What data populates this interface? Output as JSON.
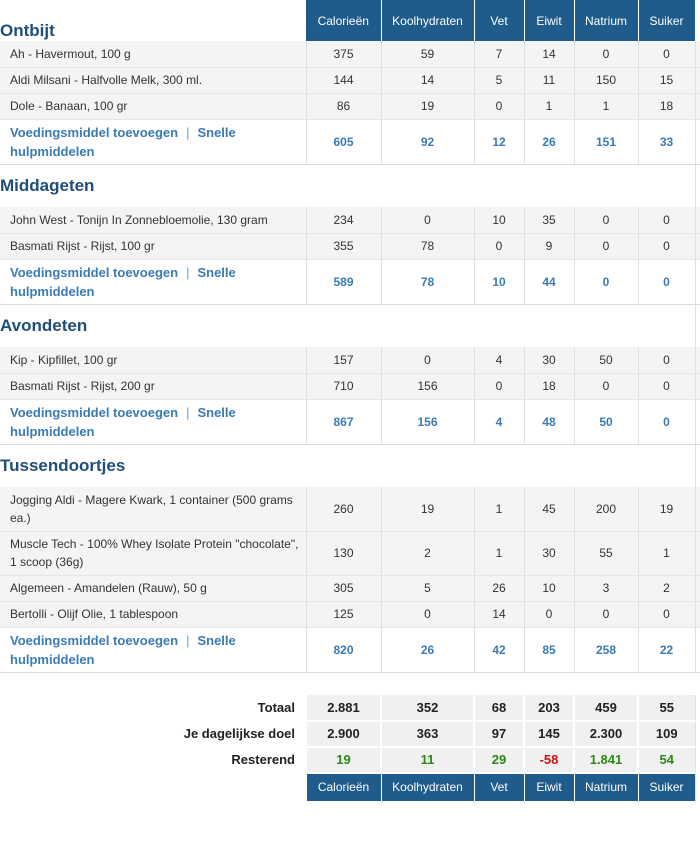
{
  "columns": [
    "Calorieën",
    "Koolhydraten",
    "Vet",
    "Eiwit",
    "Natrium",
    "Suiker"
  ],
  "add_food_label": "Voedingsmiddel toevoegen",
  "separator": "|",
  "quick_tools_label": "Snelle hulpmiddelen",
  "meals": [
    {
      "title": "Ontbijt",
      "items": [
        {
          "name": "Ah - Havermout, 100 g",
          "values": [
            "375",
            "59",
            "7",
            "14",
            "0",
            "0"
          ]
        },
        {
          "name": "Aldi Milsani - Halfvolle Melk, 300 ml.",
          "values": [
            "144",
            "14",
            "5",
            "11",
            "150",
            "15"
          ]
        },
        {
          "name": "Dole - Banaan, 100 gr",
          "values": [
            "86",
            "19",
            "0",
            "1",
            "1",
            "18"
          ]
        }
      ],
      "totals": [
        "605",
        "92",
        "12",
        "26",
        "151",
        "33"
      ]
    },
    {
      "title": "Middageten",
      "items": [
        {
          "name": "John West - Tonijn In Zonnebloemolie, 130 gram",
          "values": [
            "234",
            "0",
            "10",
            "35",
            "0",
            "0"
          ]
        },
        {
          "name": "Basmati Rijst - Rijst, 100 gr",
          "values": [
            "355",
            "78",
            "0",
            "9",
            "0",
            "0"
          ]
        }
      ],
      "totals": [
        "589",
        "78",
        "10",
        "44",
        "0",
        "0"
      ]
    },
    {
      "title": "Avondeten",
      "items": [
        {
          "name": "Kip - Kipfillet, 100 gr",
          "values": [
            "157",
            "0",
            "4",
            "30",
            "50",
            "0"
          ]
        },
        {
          "name": "Basmati Rijst - Rijst, 200 gr",
          "values": [
            "710",
            "156",
            "0",
            "18",
            "0",
            "0"
          ]
        }
      ],
      "totals": [
        "867",
        "156",
        "4",
        "48",
        "50",
        "0"
      ]
    },
    {
      "title": "Tussendoortjes",
      "items": [
        {
          "name": "Jogging Aldi - Magere Kwark, 1 container (500 grams ea.)",
          "values": [
            "260",
            "19",
            "1",
            "45",
            "200",
            "19"
          ]
        },
        {
          "name": "Muscle Tech - 100% Whey Isolate Protein \"chocolate\", 1 scoop (36g)",
          "values": [
            "130",
            "2",
            "1",
            "30",
            "55",
            "1"
          ]
        },
        {
          "name": "Algemeen - Amandelen (Rauw), 50 g",
          "values": [
            "305",
            "5",
            "26",
            "10",
            "3",
            "2"
          ]
        },
        {
          "name": "Bertolli - Olijf Olie, 1 tablespoon",
          "values": [
            "125",
            "0",
            "14",
            "0",
            "0",
            "0"
          ]
        }
      ],
      "totals": [
        "820",
        "26",
        "42",
        "85",
        "258",
        "22"
      ]
    }
  ],
  "summary": {
    "total": {
      "label": "Totaal",
      "values": [
        "2.881",
        "352",
        "68",
        "203",
        "459",
        "55"
      ]
    },
    "goal": {
      "label": "Je dagelijkse doel",
      "values": [
        "2.900",
        "363",
        "97",
        "145",
        "2.300",
        "109"
      ]
    },
    "remaining": {
      "label": "Resterend",
      "values": [
        "19",
        "11",
        "29",
        "-58",
        "1.841",
        "54"
      ],
      "status": [
        "green",
        "green",
        "green",
        "red",
        "green",
        "green"
      ]
    }
  },
  "colors": {
    "header_bg": "#1f5c8b",
    "link": "#3a7bb5",
    "positive": "#2a8a12",
    "negative": "#cc1111"
  }
}
